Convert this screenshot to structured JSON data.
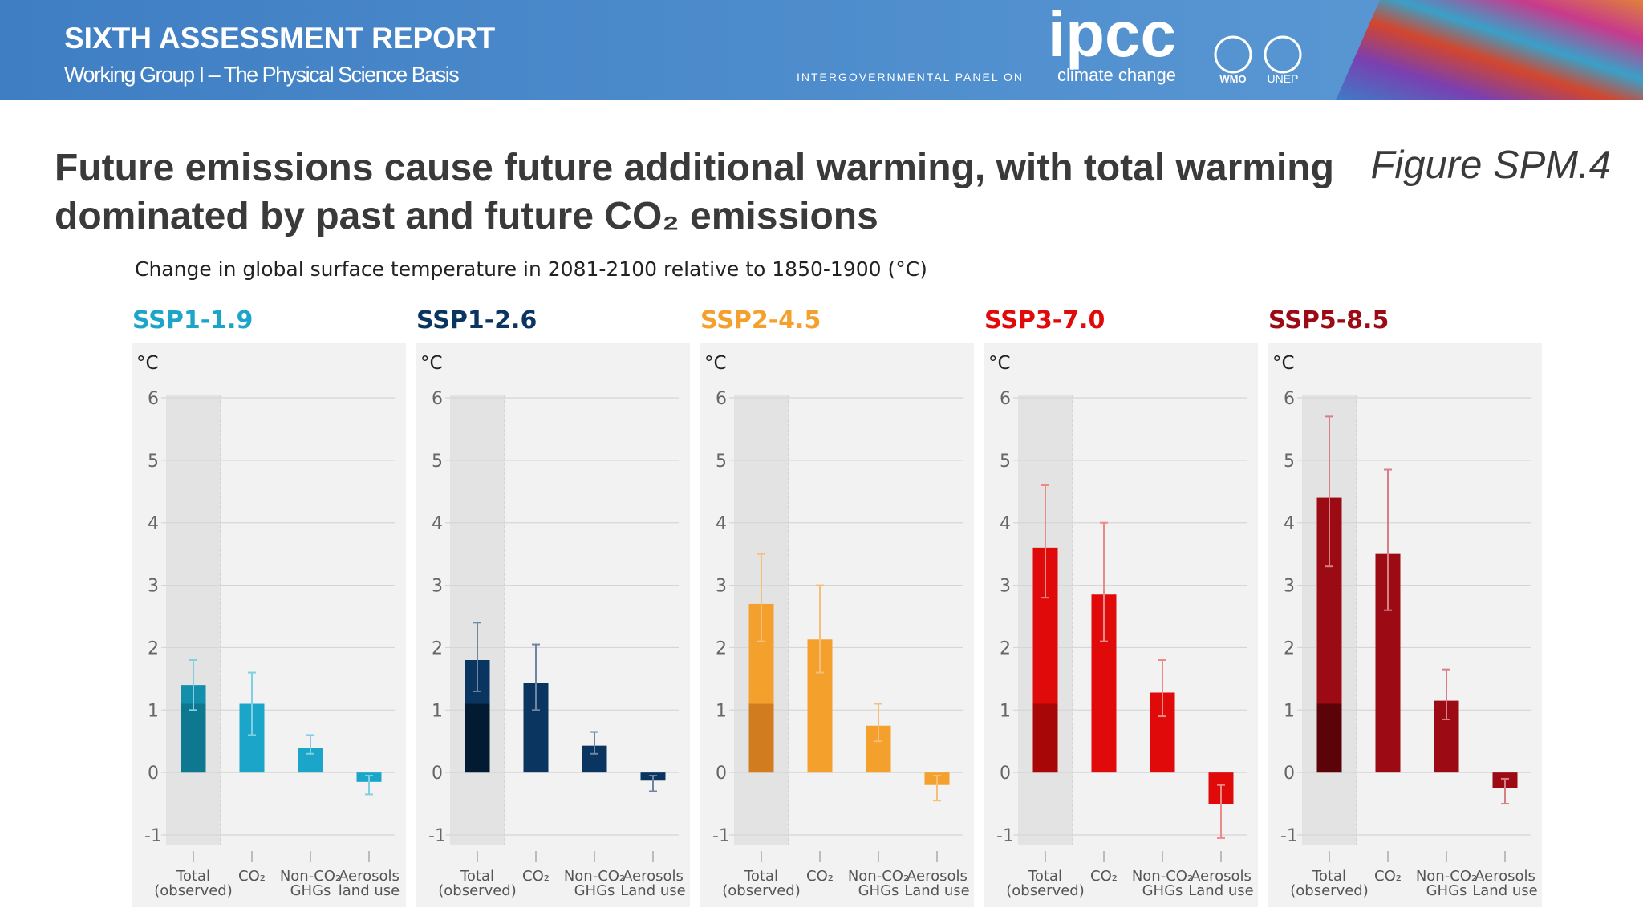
{
  "header": {
    "title": "SIXTH ASSESSMENT REPORT",
    "subtitle": "Working Group I – The Physical Science Basis",
    "logo": "ipcc",
    "logo_caption_1": "INTERGOVERNMENTAL PANEL ON",
    "logo_caption_2": "climate change",
    "partner_1": "WMO",
    "partner_2": "UNEP"
  },
  "slide": {
    "title": "Future emissions cause future additional warming, with total warming dominated by past and future CO₂ emissions",
    "figure_label": "Figure SPM.4",
    "chart_caption": "Change in global surface temperature in 2081-2100 relative to 1850-1900 (°C)"
  },
  "chart_data": [
    {
      "type": "bar",
      "title": "SSP1-1.9",
      "title_color": "#1ba6c9",
      "ylabel": "°C",
      "categories": [
        "Total\n(observed)",
        "CO₂",
        "Non-CO₂\nGHGs",
        "Aerosols\nland use"
      ],
      "values": [
        1.4,
        1.1,
        0.4,
        -0.15
      ],
      "ranges": [
        [
          1.0,
          1.8
        ],
        [
          0.6,
          1.6
        ],
        [
          0.3,
          0.6
        ],
        [
          -0.35,
          -0.05
        ]
      ],
      "colors": [
        "#138fac",
        "#1ba6c9",
        "#1ba6c9",
        "#1ba6c9"
      ],
      "observed_value": 1.1,
      "observed_color": "#0f7891",
      "error_color": "#7fd0e3",
      "ylim": [
        -1,
        6
      ],
      "yticks": [
        -1,
        0,
        1,
        2,
        3,
        4,
        5,
        6
      ]
    },
    {
      "type": "bar",
      "title": "SSP1-2.6",
      "title_color": "#0b3561",
      "ylabel": "°C",
      "categories": [
        "Total\n(observed)",
        "CO₂",
        "Non-CO₂\nGHGs",
        "Aerosols\nLand use"
      ],
      "values": [
        1.8,
        1.43,
        0.43,
        -0.13
      ],
      "ranges": [
        [
          1.3,
          2.4
        ],
        [
          1.0,
          2.05
        ],
        [
          0.3,
          0.65
        ],
        [
          -0.3,
          -0.05
        ]
      ],
      "colors": [
        "#0b3561",
        "#0b3561",
        "#0b3561",
        "#0b3561"
      ],
      "observed_value": 1.1,
      "observed_color": "#031a33",
      "error_color": "#6f86a3",
      "ylim": [
        -1,
        6
      ],
      "yticks": [
        -1,
        0,
        1,
        2,
        3,
        4,
        5,
        6
      ]
    },
    {
      "type": "bar",
      "title": "SSP2-4.5",
      "title_color": "#f4a02c",
      "ylabel": "°C",
      "categories": [
        "Total\n(observed)",
        "CO₂",
        "Non-CO₂\nGHGs",
        "Aerosols\nLand use"
      ],
      "values": [
        2.7,
        2.13,
        0.75,
        -0.2
      ],
      "ranges": [
        [
          2.1,
          3.5
        ],
        [
          1.6,
          3.0
        ],
        [
          0.5,
          1.1
        ],
        [
          -0.45,
          -0.05
        ]
      ],
      "colors": [
        "#f4a02c",
        "#f4a02c",
        "#f4a02c",
        "#f4a02c"
      ],
      "observed_value": 1.1,
      "observed_color": "#d27c20",
      "error_color": "#f6bf79",
      "ylim": [
        -1,
        6
      ],
      "yticks": [
        -1,
        0,
        1,
        2,
        3,
        4,
        5,
        6
      ]
    },
    {
      "type": "bar",
      "title": "SSP3-7.0",
      "title_color": "#e10a0a",
      "ylabel": "°C",
      "categories": [
        "Total\n(observed)",
        "CO₂",
        "Non-CO₂\nGHGs",
        "Aerosols\nLand use"
      ],
      "values": [
        3.6,
        2.85,
        1.28,
        -0.5
      ],
      "ranges": [
        [
          2.8,
          4.6
        ],
        [
          2.1,
          4.0
        ],
        [
          0.9,
          1.8
        ],
        [
          -1.05,
          -0.2
        ]
      ],
      "colors": [
        "#e10a0a",
        "#e10a0a",
        "#e10a0a",
        "#e10a0a"
      ],
      "observed_value": 1.1,
      "observed_color": "#a80707",
      "error_color": "#ec8a8a",
      "ylim": [
        -1,
        6
      ],
      "yticks": [
        -1,
        0,
        1,
        2,
        3,
        4,
        5,
        6
      ]
    },
    {
      "type": "bar",
      "title": "SSP5-8.5",
      "title_color": "#9c0a14",
      "ylabel": "°C",
      "categories": [
        "Total\n(observed)",
        "CO₂",
        "Non-CO₂\nGHGs",
        "Aerosols\nLand use"
      ],
      "values": [
        4.4,
        3.5,
        1.15,
        -0.25
      ],
      "ranges": [
        [
          3.3,
          5.7
        ],
        [
          2.6,
          4.85
        ],
        [
          0.85,
          1.65
        ],
        [
          -0.5,
          -0.1
        ]
      ],
      "colors": [
        "#9c0a14",
        "#9c0a14",
        "#9c0a14",
        "#9c0a14"
      ],
      "observed_value": 1.1,
      "observed_color": "#5c0309",
      "error_color": "#d77f86",
      "ylim": [
        -1,
        6
      ],
      "yticks": [
        -1,
        0,
        1,
        2,
        3,
        4,
        5,
        6
      ]
    }
  ]
}
